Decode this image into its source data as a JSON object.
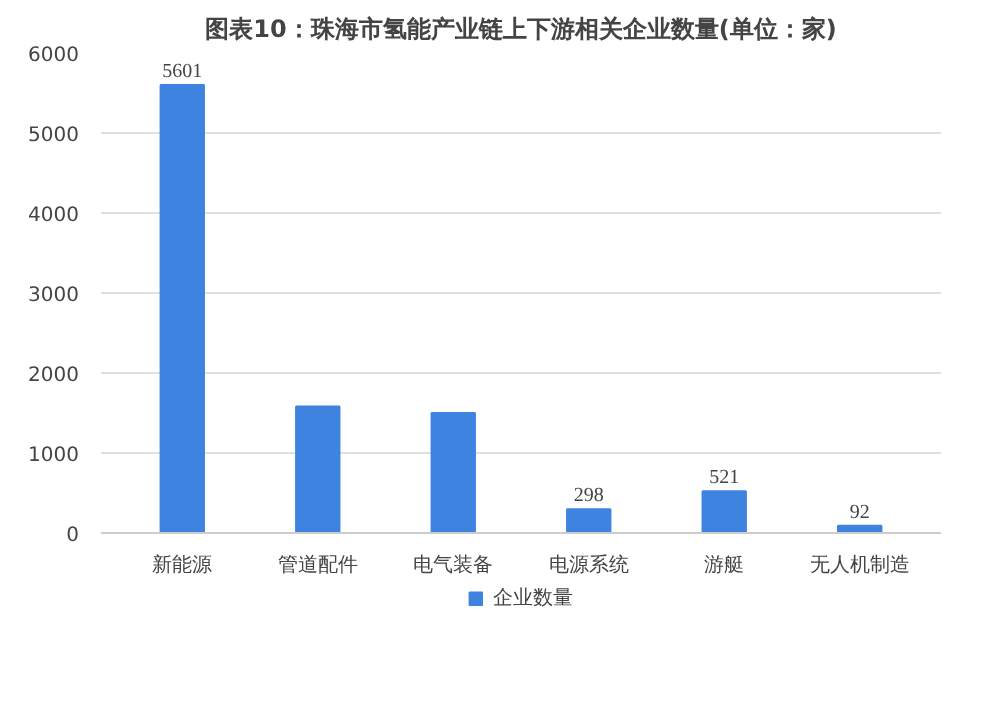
{
  "chart_data": {
    "type": "bar",
    "title": "图表10：珠海市氢能产业链上下游相关企业数量(单位：家)",
    "categories": [
      "新能源",
      "管道配件",
      "电气装备",
      "电源系统",
      "游艇",
      "无人机制造"
    ],
    "series": [
      {
        "name": "企业数量",
        "color": "#3f83e0",
        "values": [
          5601,
          1580,
          1500,
          298,
          521,
          92
        ],
        "value_labels": [
          "5601",
          null,
          null,
          "298",
          "521",
          "92"
        ]
      }
    ],
    "ylim": [
      0,
      6000
    ],
    "yticks": [
      0,
      1000,
      2000,
      3000,
      4000,
      5000,
      6000
    ],
    "grid": "y",
    "legend": "bottom"
  }
}
